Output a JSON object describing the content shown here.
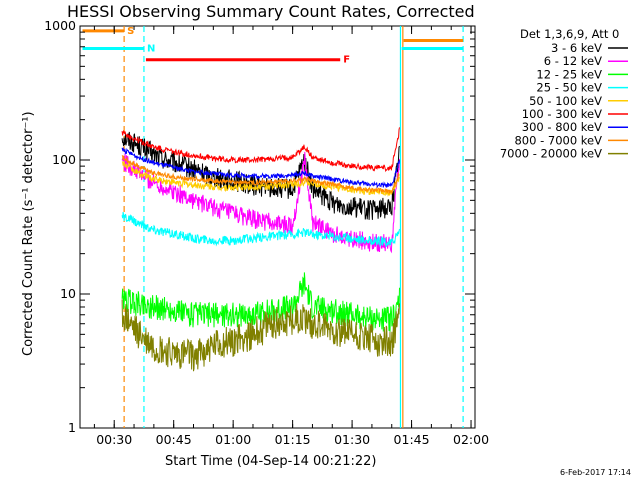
{
  "title": "HESSI Observing Summary Count Rates, Corrected",
  "xlabel": "Start Time (04-Sep-14 00:21:22)",
  "ylabel": "Corrected Count Rate (s⁻¹ detector⁻¹)",
  "timestamp": "6-Feb-2017 17:14",
  "legend_header": "Det 1,3,6,9, Att 0",
  "chart_data": {
    "type": "line",
    "xlim_minutes": [
      21.37,
      121.0
    ],
    "ylim": [
      1,
      1000
    ],
    "y_scale": "log",
    "xticks": [
      {
        "label": "00:30",
        "value": 30
      },
      {
        "label": "00:45",
        "value": 45
      },
      {
        "label": "01:00",
        "value": 60
      },
      {
        "label": "01:15",
        "value": 75
      },
      {
        "label": "01:30",
        "value": 90
      },
      {
        "label": "01:45",
        "value": 105
      },
      {
        "label": "02:00",
        "value": 120
      }
    ],
    "yticks": [
      {
        "label": "1",
        "value": 1
      },
      {
        "label": "10",
        "value": 10
      },
      {
        "label": "100",
        "value": 100
      },
      {
        "label": "1000",
        "value": 1000
      }
    ],
    "x": [
      32,
      36,
      40,
      45,
      50,
      55,
      60,
      65,
      70,
      75,
      78,
      80,
      85,
      90,
      95,
      100,
      102
    ],
    "series": [
      {
        "name": "3 - 6 keV",
        "color": "#000000",
        "values": [
          150,
          130,
          110,
          95,
          85,
          75,
          70,
          65,
          62,
          60,
          100,
          60,
          48,
          45,
          42,
          45,
          120
        ]
      },
      {
        "name": "6 - 12 keV",
        "color": "#ff00ff",
        "values": [
          100,
          80,
          68,
          58,
          50,
          44,
          40,
          36,
          34,
          32,
          105,
          34,
          28,
          26,
          24,
          24,
          110
        ]
      },
      {
        "name": "12 - 25 keV",
        "color": "#00ff00",
        "values": [
          9,
          8.5,
          8,
          7.5,
          7,
          7,
          7,
          7,
          7.5,
          8,
          12,
          8,
          7.5,
          7,
          6.5,
          6.5,
          9
        ]
      },
      {
        "name": "25 - 50 keV",
        "color": "#00ffff",
        "values": [
          38,
          34,
          30,
          28,
          26,
          25,
          25,
          26,
          27,
          28,
          29,
          28,
          27,
          26,
          25,
          24,
          30
        ]
      },
      {
        "name": "50 - 100 keV",
        "color": "#ffcc00",
        "values": [
          95,
          80,
          72,
          68,
          65,
          63,
          62,
          63,
          64,
          66,
          68,
          67,
          63,
          60,
          58,
          57,
          75
        ]
      },
      {
        "name": "100 - 300 keV",
        "color": "#ff0000",
        "values": [
          160,
          140,
          125,
          115,
          108,
          103,
          100,
          100,
          102,
          105,
          125,
          105,
          95,
          90,
          88,
          87,
          170
        ]
      },
      {
        "name": "300 - 800 keV",
        "color": "#0000ff",
        "values": [
          120,
          105,
          95,
          88,
          82,
          79,
          77,
          76,
          76,
          77,
          80,
          76,
          72,
          68,
          66,
          64,
          100
        ]
      },
      {
        "name": "800 - 7000 keV",
        "color": "#ff8800",
        "values": [
          105,
          90,
          80,
          75,
          72,
          70,
          68,
          68,
          69,
          70,
          72,
          70,
          66,
          62,
          60,
          58,
          80
        ]
      },
      {
        "name": "7000 - 20000 keV",
        "color": "#808000",
        "values": [
          7,
          5,
          4,
          3.5,
          3.5,
          4,
          4.5,
          5,
          6,
          6.5,
          6.5,
          6,
          5.5,
          5,
          4.5,
          4.5,
          7
        ]
      }
    ],
    "orbit_flags": [
      {
        "label": "S",
        "color": "#ff8800",
        "start": 22,
        "end": 32.5,
        "pos": 920
      },
      {
        "label": "N",
        "color": "#00ffff",
        "start": 22,
        "end": 37.5,
        "pos": 680
      },
      {
        "label": "F",
        "color": "#ff0000",
        "start": 38,
        "end": 87,
        "pos": 560
      },
      {
        "label": "",
        "color": "#00ffff",
        "start": 102.5,
        "end": 118,
        "pos": 680
      },
      {
        "label": "",
        "color": "#ff8800",
        "start": 103,
        "end": 118,
        "pos": 780
      }
    ],
    "vertical_markers": [
      {
        "color": "#ff8800",
        "dashed": true,
        "value": 32.5
      },
      {
        "color": "#00ffff",
        "dashed": true,
        "value": 37.5
      },
      {
        "color": "#00ffff",
        "dashed": false,
        "value": 102.2
      },
      {
        "color": "#ff8800",
        "dashed": false,
        "value": 102.8
      },
      {
        "color": "#00ffff",
        "dashed": true,
        "value": 118
      }
    ],
    "grid": false,
    "legend_position": "right"
  }
}
